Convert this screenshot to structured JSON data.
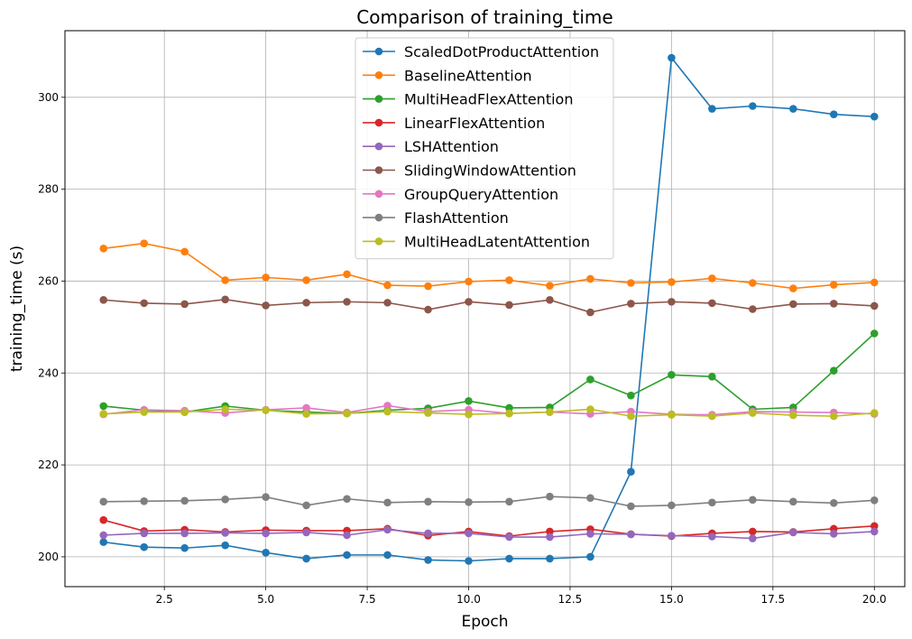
{
  "chart_data": {
    "type": "line",
    "title": "Comparison of training_time",
    "xlabel": "Epoch",
    "ylabel": "training_time (s)",
    "xlim": [
      0.05,
      20.75
    ],
    "ylim": [
      193.5,
      314.5
    ],
    "xticks": [
      2.5,
      5.0,
      7.5,
      10.0,
      12.5,
      15.0,
      17.5,
      20.0
    ],
    "xtick_labels": [
      "2.5",
      "5.0",
      "7.5",
      "10.0",
      "12.5",
      "15.0",
      "17.5",
      "20.0"
    ],
    "yticks": [
      200,
      220,
      240,
      260,
      280,
      300
    ],
    "ytick_labels": [
      "200",
      "220",
      "240",
      "260",
      "280",
      "300"
    ],
    "grid": true,
    "legend_position": "upper-center",
    "x": [
      1,
      2,
      3,
      4,
      5,
      6,
      7,
      8,
      9,
      10,
      11,
      12,
      13,
      14,
      15,
      16,
      17,
      18,
      19,
      20
    ],
    "series": [
      {
        "name": "ScaledDotProductAttention",
        "color": "#1f77b4",
        "values": [
          203.2,
          202.1,
          201.9,
          202.5,
          200.9,
          199.6,
          200.4,
          200.4,
          199.3,
          199.1,
          199.6,
          199.6,
          200.0,
          218.5,
          308.6,
          297.5,
          298.1,
          297.5,
          296.3,
          295.8
        ]
      },
      {
        "name": "BaselineAttention",
        "color": "#ff7f0e",
        "values": [
          267.1,
          268.2,
          266.4,
          260.2,
          260.8,
          260.2,
          261.5,
          259.1,
          258.9,
          259.9,
          260.2,
          259.0,
          260.5,
          259.6,
          259.8,
          260.6,
          259.6,
          258.4,
          259.2,
          259.7
        ]
      },
      {
        "name": "MultiHeadFlexAttention",
        "color": "#2ca02c",
        "values": [
          232.8,
          231.9,
          231.5,
          232.8,
          231.9,
          231.5,
          231.2,
          231.9,
          232.3,
          233.9,
          232.4,
          232.5,
          238.6,
          235.1,
          239.6,
          239.2,
          232.1,
          232.5,
          240.5,
          248.6
        ]
      },
      {
        "name": "LinearFlexAttention",
        "color": "#d62728",
        "values": [
          208.0,
          205.6,
          205.9,
          205.4,
          205.8,
          205.7,
          205.7,
          206.1,
          204.6,
          205.5,
          204.5,
          205.5,
          206.0,
          204.9,
          204.5,
          205.1,
          205.5,
          205.4,
          206.1,
          206.7
        ]
      },
      {
        "name": "LSHAttention",
        "color": "#9467bd",
        "values": [
          204.7,
          205.1,
          205.1,
          205.2,
          205.1,
          205.3,
          204.7,
          205.9,
          205.1,
          205.1,
          204.3,
          204.3,
          205.0,
          204.9,
          204.6,
          204.4,
          204.0,
          205.3,
          205.0,
          205.5
        ]
      },
      {
        "name": "SlidingWindowAttention",
        "color": "#8c564b",
        "values": [
          255.9,
          255.2,
          255.0,
          256.0,
          254.7,
          255.3,
          255.5,
          255.3,
          253.8,
          255.5,
          254.8,
          255.9,
          253.2,
          255.1,
          255.5,
          255.2,
          253.9,
          255.0,
          255.1,
          254.6
        ]
      },
      {
        "name": "GroupQueryAttention",
        "color": "#e377c2",
        "values": [
          231.0,
          232.0,
          231.8,
          231.3,
          232.0,
          232.4,
          231.4,
          232.9,
          231.6,
          232.0,
          231.2,
          231.5,
          231.1,
          231.6,
          231.0,
          230.9,
          231.6,
          231.5,
          231.4,
          231.1
        ]
      },
      {
        "name": "FlashAttention",
        "color": "#7f7f7f",
        "values": [
          212.0,
          212.1,
          212.2,
          212.5,
          213.0,
          211.2,
          212.6,
          211.8,
          212.0,
          211.9,
          212.0,
          213.1,
          212.8,
          211.0,
          211.2,
          211.8,
          212.4,
          212.0,
          211.7,
          212.3
        ]
      },
      {
        "name": "MultiHeadLatentAttention",
        "color": "#bcbd22",
        "values": [
          231.1,
          231.5,
          231.5,
          232.1,
          231.9,
          231.1,
          231.2,
          231.6,
          231.3,
          231.0,
          231.2,
          231.5,
          232.1,
          230.6,
          230.9,
          230.6,
          231.3,
          230.8,
          230.6,
          231.3
        ]
      }
    ]
  }
}
